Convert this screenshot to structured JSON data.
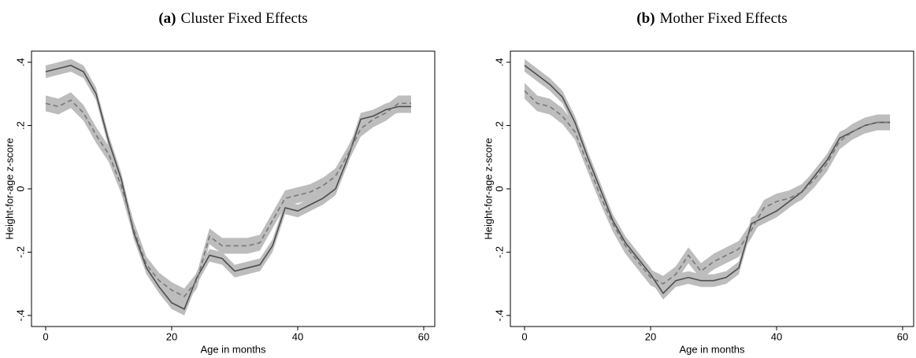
{
  "chart_data": [
    {
      "type": "line",
      "label": "(a)",
      "title": "Cluster Fixed Effects",
      "x_label": "Age in months",
      "y_label": "Height-for-age z-score",
      "x": [
        0,
        2,
        4,
        6,
        8,
        10,
        12,
        14,
        16,
        18,
        20,
        22,
        24,
        26,
        28,
        30,
        32,
        34,
        36,
        38,
        40,
        42,
        44,
        46,
        48,
        50,
        52,
        54,
        56,
        58
      ],
      "series": [
        {
          "style": "solid",
          "color": "#4d4d4d",
          "band_color": "#bdbdbd",
          "ci_halfwidth": 0.02,
          "values": [
            0.37,
            0.38,
            0.39,
            0.37,
            0.3,
            0.15,
            0.03,
            -0.14,
            -0.25,
            -0.31,
            -0.36,
            -0.38,
            -0.28,
            -0.21,
            -0.22,
            -0.26,
            -0.25,
            -0.24,
            -0.18,
            -0.06,
            -0.07,
            -0.05,
            -0.03,
            0.0,
            0.1,
            0.22,
            0.23,
            0.25,
            0.26,
            0.26
          ]
        },
        {
          "style": "dashed",
          "color": "#777777",
          "band_color": "#bdbdbd",
          "ci_halfwidth": 0.025,
          "values": [
            0.27,
            0.26,
            0.28,
            0.24,
            0.17,
            0.11,
            0.01,
            -0.13,
            -0.24,
            -0.29,
            -0.32,
            -0.34,
            -0.29,
            -0.15,
            -0.18,
            -0.18,
            -0.18,
            -0.17,
            -0.1,
            -0.03,
            -0.02,
            -0.01,
            0.01,
            0.04,
            0.11,
            0.19,
            0.22,
            0.24,
            0.27,
            0.27
          ]
        }
      ],
      "xlim": [
        -2.25,
        61.75
      ],
      "xticks": [
        0,
        20,
        40,
        60
      ],
      "ylim": [
        -0.435,
        0.435
      ],
      "yticks": [
        {
          "value": -0.4,
          "label": "-.4"
        },
        {
          "value": -0.2,
          "label": "-.2"
        },
        0,
        {
          "value": 0.2,
          "label": ".2"
        },
        {
          "value": 0.4,
          "label": ".4"
        }
      ]
    },
    {
      "type": "line",
      "label": "(b)",
      "title": "Mother Fixed Effects",
      "x_label": "Age in months",
      "y_label": "Height-for-age z-score",
      "x": [
        0,
        2,
        4,
        6,
        8,
        10,
        12,
        14,
        16,
        18,
        20,
        22,
        24,
        26,
        28,
        30,
        32,
        34,
        36,
        38,
        40,
        42,
        44,
        46,
        48,
        50,
        52,
        54,
        56,
        58
      ],
      "series": [
        {
          "style": "solid",
          "color": "#4d4d4d",
          "band_color": "#bdbdbd",
          "ci_halfwidth": 0.02,
          "values": [
            0.39,
            0.36,
            0.33,
            0.29,
            0.21,
            0.1,
            0.0,
            -0.1,
            -0.17,
            -0.22,
            -0.27,
            -0.33,
            -0.29,
            -0.28,
            -0.29,
            -0.29,
            -0.28,
            -0.25,
            -0.11,
            -0.09,
            -0.07,
            -0.04,
            -0.01,
            0.04,
            0.09,
            0.16,
            0.18,
            0.2,
            0.21,
            0.21
          ]
        },
        {
          "style": "dashed",
          "color": "#777777",
          "band_color": "#bdbdbd",
          "ci_halfwidth": 0.025,
          "values": [
            0.31,
            0.27,
            0.26,
            0.23,
            0.18,
            0.08,
            -0.02,
            -0.11,
            -0.18,
            -0.23,
            -0.28,
            -0.3,
            -0.27,
            -0.21,
            -0.26,
            -0.23,
            -0.21,
            -0.19,
            -0.13,
            -0.06,
            -0.04,
            -0.03,
            -0.01,
            0.03,
            0.08,
            0.15,
            0.18,
            0.2,
            0.21,
            0.21
          ]
        }
      ],
      "xlim": [
        -2.25,
        61.75
      ],
      "xticks": [
        0,
        20,
        40,
        60
      ],
      "ylim": [
        -0.435,
        0.435
      ],
      "yticks": [
        {
          "value": -0.4,
          "label": "-.4"
        },
        {
          "value": -0.2,
          "label": "-.2"
        },
        0,
        {
          "value": 0.2,
          "label": ".2"
        },
        {
          "value": 0.4,
          "label": ".4"
        }
      ]
    }
  ]
}
